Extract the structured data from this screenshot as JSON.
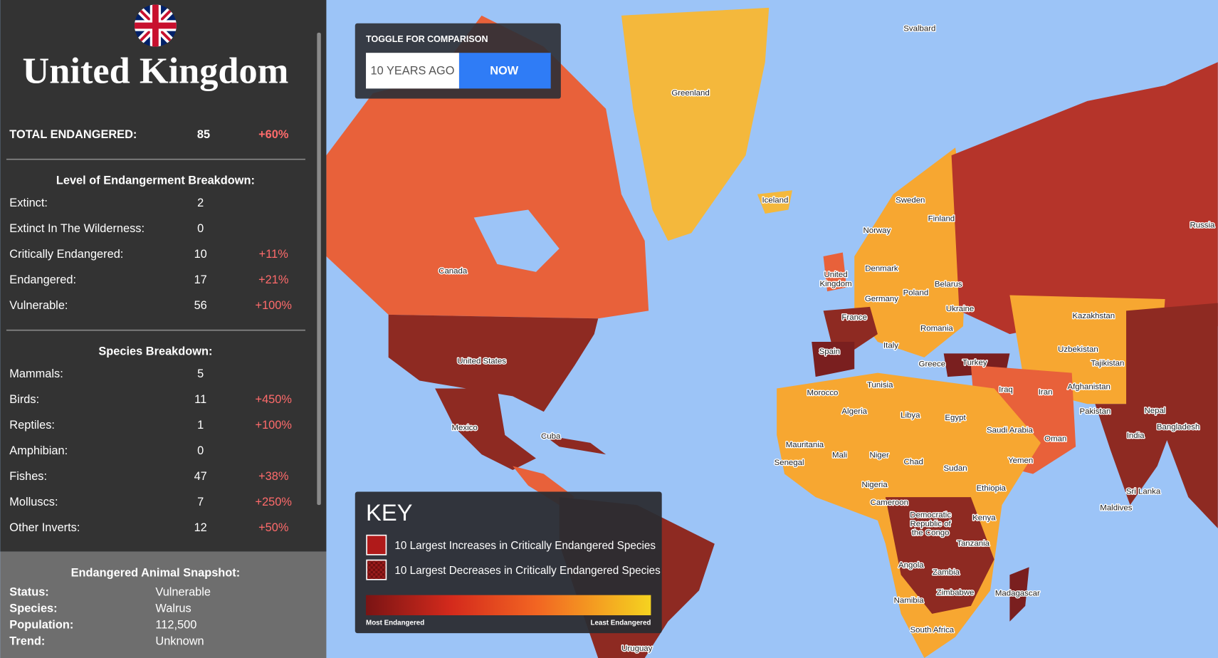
{
  "sidebar": {
    "country": "United Kingdom",
    "total": {
      "label": "TOTAL ENDANGERED:",
      "value": 85,
      "change": "+60%"
    },
    "levels": {
      "title": "Level of Endangerment Breakdown:",
      "rows": [
        {
          "label": "Extinct:",
          "value": 2
        },
        {
          "label": "Extinct In The Wilderness:",
          "value": 0
        },
        {
          "label": "Critically Endangered:",
          "value": 10,
          "change": "+11%"
        },
        {
          "label": "Endangered:",
          "value": 17,
          "change": "+21%"
        },
        {
          "label": "Vulnerable:",
          "value": 56,
          "change": "+100%"
        }
      ]
    },
    "species": {
      "title": "Species Breakdown:",
      "rows": [
        {
          "label": "Mammals:",
          "value": 5
        },
        {
          "label": "Birds:",
          "value": 11,
          "change": "+450%"
        },
        {
          "label": "Reptiles:",
          "value": 1,
          "change": "+100%"
        },
        {
          "label": "Amphibian:",
          "value": 0
        },
        {
          "label": "Fishes:",
          "value": 47,
          "change": "+38%"
        },
        {
          "label": "Molluscs:",
          "value": 7,
          "change": "+250%"
        },
        {
          "label": "Other Inverts:",
          "value": 12,
          "change": "+50%"
        }
      ]
    },
    "snapshot": {
      "title": "Endangered Animal Snapshot:",
      "rows": [
        {
          "label": "Status:",
          "value": "Vulnerable"
        },
        {
          "label": "Species:",
          "value": "Walrus"
        },
        {
          "label": "Population:",
          "value": "112,500"
        },
        {
          "label": "Trend:",
          "value": "Unknown"
        }
      ]
    }
  },
  "toggle": {
    "title": "TOGGLE FOR COMPARISON",
    "options": [
      "10 YEARS AGO",
      "NOW"
    ]
  },
  "key": {
    "title": "KEY",
    "items": [
      "10 Largest Increases in Critically Endangered Species",
      "10 Largest Decreases in Critically Endangered Species"
    ],
    "scale_labels": [
      "Most Endangered",
      "Least Endangered"
    ]
  },
  "map": {
    "labels": [
      "Svalbard",
      "Greenland",
      "Iceland",
      "Sweden",
      "Finland",
      "Norway",
      "Russia",
      "Canada",
      "Denmark",
      "United Kingdom",
      "Belarus",
      "Poland",
      "Germany",
      "Ukraine",
      "Kazakhstan",
      "France",
      "Romania",
      "Italy",
      "Spain",
      "Uzbekistan",
      "Greece",
      "Turkey",
      "Tajikistan",
      "Tunisia",
      "Morocco",
      "Iraq",
      "Iran",
      "Afghanistan",
      "Algeria",
      "Libya",
      "Egypt",
      "Pakistan",
      "Nepal",
      "Bangladesh",
      "Saudi Arabia",
      "India",
      "Oman",
      "Mauritania",
      "Mali",
      "Niger",
      "Chad",
      "Senegal",
      "Yemen",
      "Sudan",
      "Nigeria",
      "Ethiopia",
      "Sri Lanka",
      "Maldives",
      "Cameroon",
      "Kenya",
      "Democratic Republic of the Congo",
      "Tanzania",
      "Angola",
      "Zambia",
      "Zimbabwe",
      "Madagascar",
      "Namibia",
      "South Africa",
      "United States",
      "Mexico",
      "Cuba",
      "Uruguay"
    ]
  }
}
